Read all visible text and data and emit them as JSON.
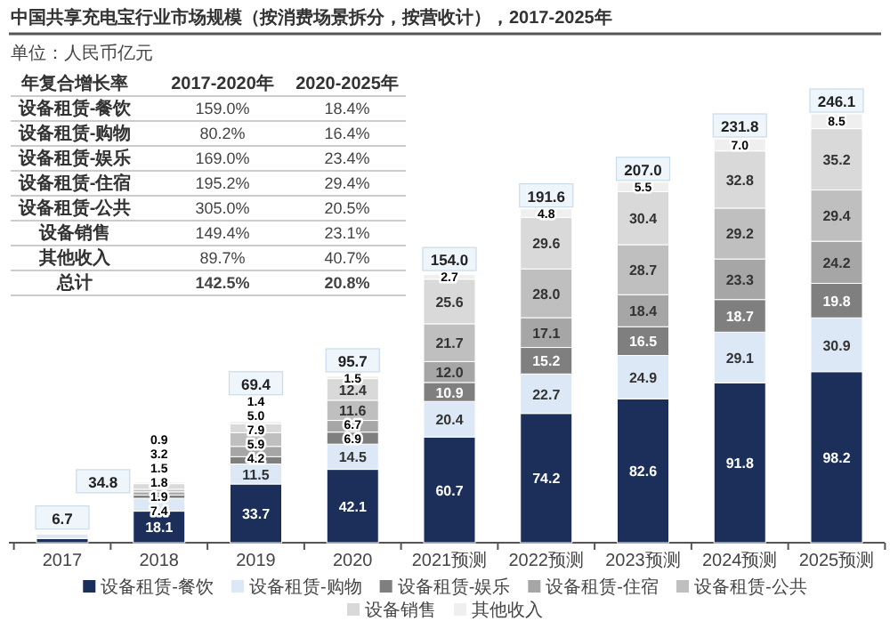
{
  "chart_data": [
    {
      "type": "bar",
      "stacked": true,
      "title": "中国共享充电宝行业市场规模（按消费场景拆分，按营收计），2017-2025年",
      "subtitle": "单位：人民币亿元",
      "categories": [
        "2017",
        "2018",
        "2019",
        "2020",
        "2021预测",
        "2022预测",
        "2023预测",
        "2024预测",
        "2025预测"
      ],
      "series": [
        {
          "name": "设备租赁-餐饮",
          "color": "#1b2f5a",
          "values": [
            2.4,
            18.1,
            33.7,
            42.1,
            60.7,
            74.2,
            82.6,
            91.8,
            98.2
          ],
          "value_labels": [
            null,
            "18.1",
            "33.7",
            "42.1",
            "60.7",
            "74.2",
            "82.6",
            "91.8",
            "98.2"
          ]
        },
        {
          "name": "设备租赁-购物",
          "color": "#dce8f5",
          "values": [
            2.5,
            7.4,
            11.5,
            14.5,
            20.4,
            22.7,
            24.9,
            29.1,
            30.9
          ],
          "value_labels": [
            null,
            "7.4",
            "11.5",
            "14.5",
            "20.4",
            "22.7",
            "24.9",
            "29.1",
            "30.9"
          ]
        },
        {
          "name": "设备租赁-娱乐",
          "color": "#7f7f7f",
          "values": [
            0.4,
            1.9,
            4.2,
            6.9,
            10.9,
            15.2,
            16.5,
            18.7,
            19.8
          ],
          "value_labels": [
            null,
            "1.9",
            "4.2",
            "6.9",
            "10.9",
            "15.2",
            "16.5",
            "18.7",
            "19.8"
          ]
        },
        {
          "name": "设备租赁-住宿",
          "color": "#a6a6a6",
          "values": [
            0.3,
            1.8,
            5.9,
            6.7,
            12.0,
            17.1,
            18.4,
            23.3,
            24.2
          ],
          "value_labels": [
            null,
            "1.8",
            "5.9",
            "6.7",
            "12.0",
            "17.1",
            "18.4",
            "23.3",
            "24.2"
          ]
        },
        {
          "name": "设备租赁-公共",
          "color": "#bfbfbf",
          "values": [
            0.2,
            1.5,
            7.9,
            11.6,
            21.7,
            28.0,
            28.7,
            29.2,
            29.4
          ],
          "value_labels": [
            null,
            "1.5",
            "7.9",
            "11.6",
            "21.7",
            "28.0",
            "28.7",
            "29.2",
            "29.4"
          ]
        },
        {
          "name": "设备销售",
          "color": "#d9d9d9",
          "values": [
            0.8,
            3.2,
            5.0,
            12.4,
            25.6,
            29.6,
            30.4,
            32.8,
            35.2
          ],
          "value_labels": [
            null,
            "3.2",
            "5.0",
            "12.4",
            "25.6",
            "29.6",
            "30.4",
            "32.8",
            "35.2"
          ]
        },
        {
          "name": "其他收入",
          "color": "#efefef",
          "values": [
            0.2,
            0.9,
            1.4,
            1.5,
            2.7,
            4.8,
            5.5,
            7.0,
            8.5
          ],
          "value_labels": [
            null,
            "0.9",
            "1.4",
            "1.5",
            "2.7",
            "4.8",
            "5.5",
            "7.0",
            "8.5"
          ]
        }
      ],
      "totals": [
        "6.7",
        "34.8",
        "69.4",
        "95.7",
        "154.0",
        "191.6",
        "207.0",
        "231.8",
        "246.1"
      ],
      "legend": "bottom"
    },
    {
      "type": "other",
      "title": "年复合增长率",
      "categories": [
        "设备租赁-餐饮",
        "设备租赁-购物",
        "设备租赁-娱乐",
        "设备租赁-住宿",
        "设备租赁-公共",
        "设备销售",
        "其他收入",
        "总计"
      ],
      "series": [
        {
          "name": "2017-2020年",
          "values": [
            159.0,
            80.2,
            169.0,
            195.2,
            305.0,
            149.4,
            89.7,
            142.5
          ],
          "value_labels": [
            "159.0%",
            "80.2%",
            "169.0%",
            "195.2%",
            "305.0%",
            "149.4%",
            "89.7%",
            "142.5%"
          ]
        },
        {
          "name": "2020-2025年",
          "values": [
            18.4,
            16.4,
            23.4,
            29.4,
            20.5,
            23.1,
            40.7,
            20.8
          ],
          "value_labels": [
            "18.4%",
            "16.4%",
            "23.4%",
            "29.4%",
            "20.5%",
            "23.1%",
            "40.7%",
            "20.8%"
          ]
        }
      ]
    }
  ]
}
